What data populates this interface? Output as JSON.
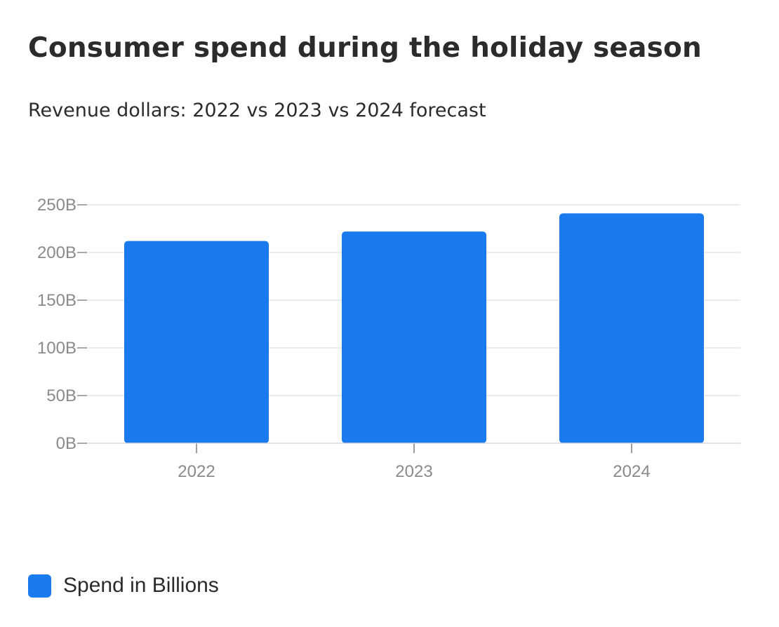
{
  "chart_data": {
    "type": "bar",
    "title": "Consumer spend during the holiday season",
    "subtitle": "Revenue dollars: 2022 vs 2023 vs 2024 forecast",
    "categories": [
      "2022",
      "2023",
      "2024"
    ],
    "series": [
      {
        "name": "Spend in Billions",
        "values": [
          212,
          222,
          241
        ],
        "color": "#1a7bf0"
      }
    ],
    "y_ticks": [
      {
        "value": 0,
        "label": "0B"
      },
      {
        "value": 50,
        "label": "50B"
      },
      {
        "value": 100,
        "label": "100B"
      },
      {
        "value": 150,
        "label": "150B"
      },
      {
        "value": 200,
        "label": "200B"
      },
      {
        "value": 250,
        "label": "250B"
      }
    ],
    "ylim": [
      0,
      250
    ],
    "xlabel": "",
    "ylabel": "",
    "grid": true,
    "legend_position": "bottom-left",
    "colors": {
      "bar": "#1a7bf0",
      "grid": "#e3e3ef",
      "tick_text": "#8a8a8a",
      "axis": "#7a7a7a"
    }
  }
}
